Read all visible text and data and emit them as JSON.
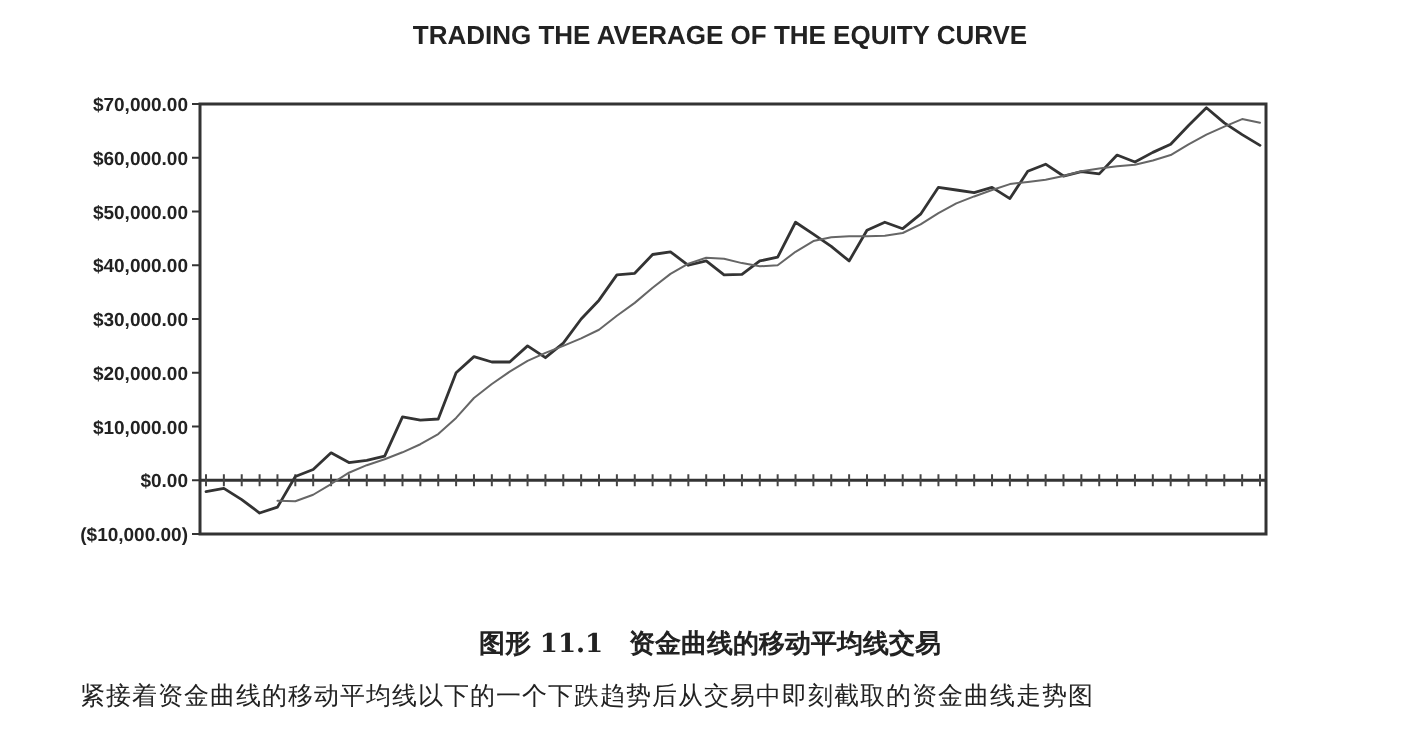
{
  "chart_data": {
    "type": "line",
    "title": "TRADING THE AVERAGE OF THE EQUITY CURVE",
    "categories": [
      null,
      null,
      null,
      null,
      null,
      null,
      null,
      null,
      null,
      null,
      null,
      null,
      null,
      null,
      null,
      null,
      null,
      null,
      null,
      null,
      null,
      null,
      null,
      null,
      null,
      null,
      null,
      null,
      null,
      null,
      null,
      null,
      null,
      null,
      null,
      null,
      null,
      null,
      null,
      null,
      null,
      null,
      null,
      null,
      null,
      null,
      null,
      null,
      null,
      null,
      null,
      null,
      null,
      null,
      null,
      null,
      null,
      null,
      null,
      null
    ],
    "series": [
      {
        "color": "#333333",
        "values": [
          -2100,
          -1500,
          -3600,
          -6100,
          -5000,
          700,
          2000,
          5100,
          3300,
          3700,
          4500,
          11800,
          11200,
          11400,
          20000,
          23000,
          22000,
          22000,
          25000,
          22800,
          25500,
          30000,
          33500,
          38200,
          38500,
          42000,
          42500,
          40000,
          40800,
          38200,
          38300,
          40800,
          41500,
          48000,
          45800,
          43500,
          40800,
          46500,
          48000,
          46800,
          49500,
          54500,
          54000,
          53500,
          54500,
          52400,
          57500,
          58800,
          56600,
          57400,
          57000,
          60500,
          59200,
          61000,
          62500,
          66000,
          69300,
          66500,
          64300,
          62300
        ]
      },
      {
        "color": "#666666",
        "values": [
          null,
          null,
          null,
          null,
          -3800,
          -3900,
          -2700,
          -700,
          1400,
          2800,
          3900,
          5200,
          6700,
          8600,
          11600,
          15300,
          17900,
          20200,
          22200,
          23700,
          25000,
          26400,
          28000,
          30600,
          33000,
          35800,
          38400,
          40300,
          41400,
          41200,
          40400,
          39800,
          40000,
          42500,
          44500,
          45200,
          45400,
          45400,
          45500,
          46000,
          47600,
          49700,
          51500,
          52800,
          54000,
          55100,
          55500,
          55900,
          56600,
          57500,
          58000,
          58400,
          58700,
          59500,
          60500,
          62500,
          64300,
          65800,
          67200,
          66500
        ]
      }
    ],
    "ylim": [
      -10000,
      70000
    ],
    "yticks": [
      {
        "value": -10000,
        "label": "($10,000.00)"
      },
      {
        "value": 0,
        "label": "$0.00"
      },
      {
        "value": 10000,
        "label": "$10,000.00"
      },
      {
        "value": 20000,
        "label": "$20,000.00"
      },
      {
        "value": 30000,
        "label": "$30,000.00"
      },
      {
        "value": 40000,
        "label": "$40,000.00"
      },
      {
        "value": 50000,
        "label": "$50,000.00"
      },
      {
        "value": 60000,
        "label": "$60,000.00"
      },
      {
        "value": 70000,
        "label": "$70,000.00"
      }
    ],
    "tick_labels": "y",
    "annotations": [
      "图形 11.1　资金曲线的移动平均线交易",
      "紧接着资金曲线的移动平均线以下的一个下跌趋势后从交易中即刻截取的资金曲线走势图"
    ]
  }
}
